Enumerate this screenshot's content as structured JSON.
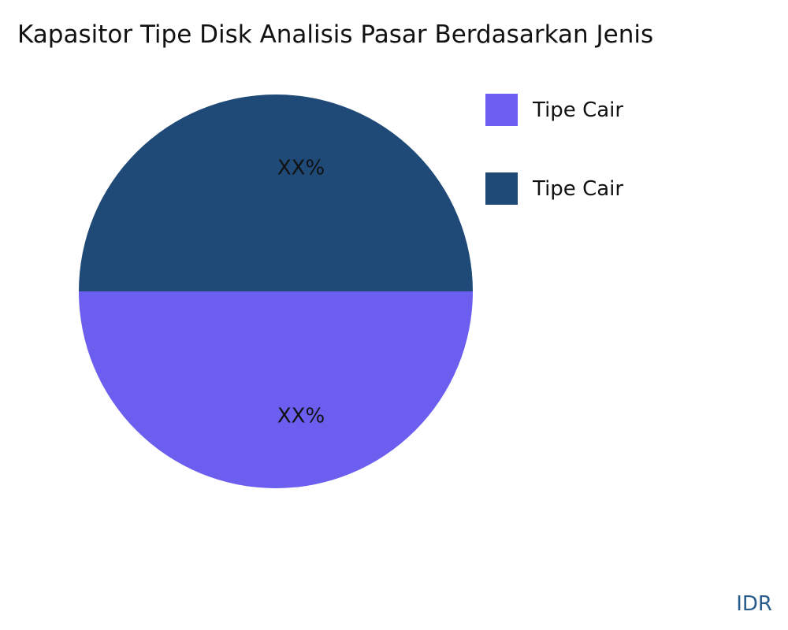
{
  "chart_data": {
    "type": "pie",
    "title": "Kapasitor Tipe Disk Analisis Pasar Berdasarkan Jenis",
    "slices": [
      {
        "label": "Tipe Cair",
        "value": 50,
        "data_label": "XX%",
        "color": "#6c5ff0"
      },
      {
        "label": "Tipe Cair",
        "value": 50,
        "data_label": "XX%",
        "color": "#1f4a78"
      }
    ],
    "legend_position": "right"
  },
  "brand": "IDR"
}
